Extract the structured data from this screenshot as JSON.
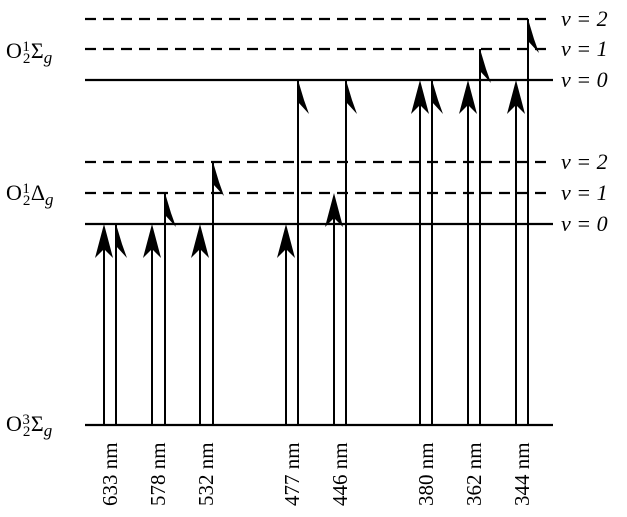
{
  "states": {
    "ground": {
      "base": "O",
      "sub": "2",
      "sup": "3",
      "sym": "Σ",
      "parity": "g"
    },
    "delta": {
      "base": "O",
      "sub": "2",
      "sup": "1",
      "sym": "Δ",
      "parity": "g"
    },
    "sigma": {
      "base": "O",
      "sub": "2",
      "sup": "1",
      "sym": "Σ",
      "parity": "g"
    }
  },
  "vibrational_labels": {
    "sigma_v2": "v = 2",
    "sigma_v1": "v = 1",
    "sigma_v0": "v = 0",
    "delta_v2": "v = 2",
    "delta_v1": "v = 1",
    "delta_v0": "v = 0"
  },
  "transitions": [
    {
      "label": "633 nm",
      "target": "delta_v0"
    },
    {
      "label": "578 nm",
      "target": "delta_v1"
    },
    {
      "label": "532 nm",
      "target": "delta_v2"
    },
    {
      "label": "477 nm",
      "target": "sigma_v0"
    },
    {
      "label": "446 nm",
      "target": "sigma_v0"
    },
    {
      "label": "380 nm",
      "target": "sigma_v0"
    },
    {
      "label": "362 nm",
      "target": "sigma_v1"
    },
    {
      "label": "344 nm",
      "target": "sigma_v2"
    }
  ]
}
